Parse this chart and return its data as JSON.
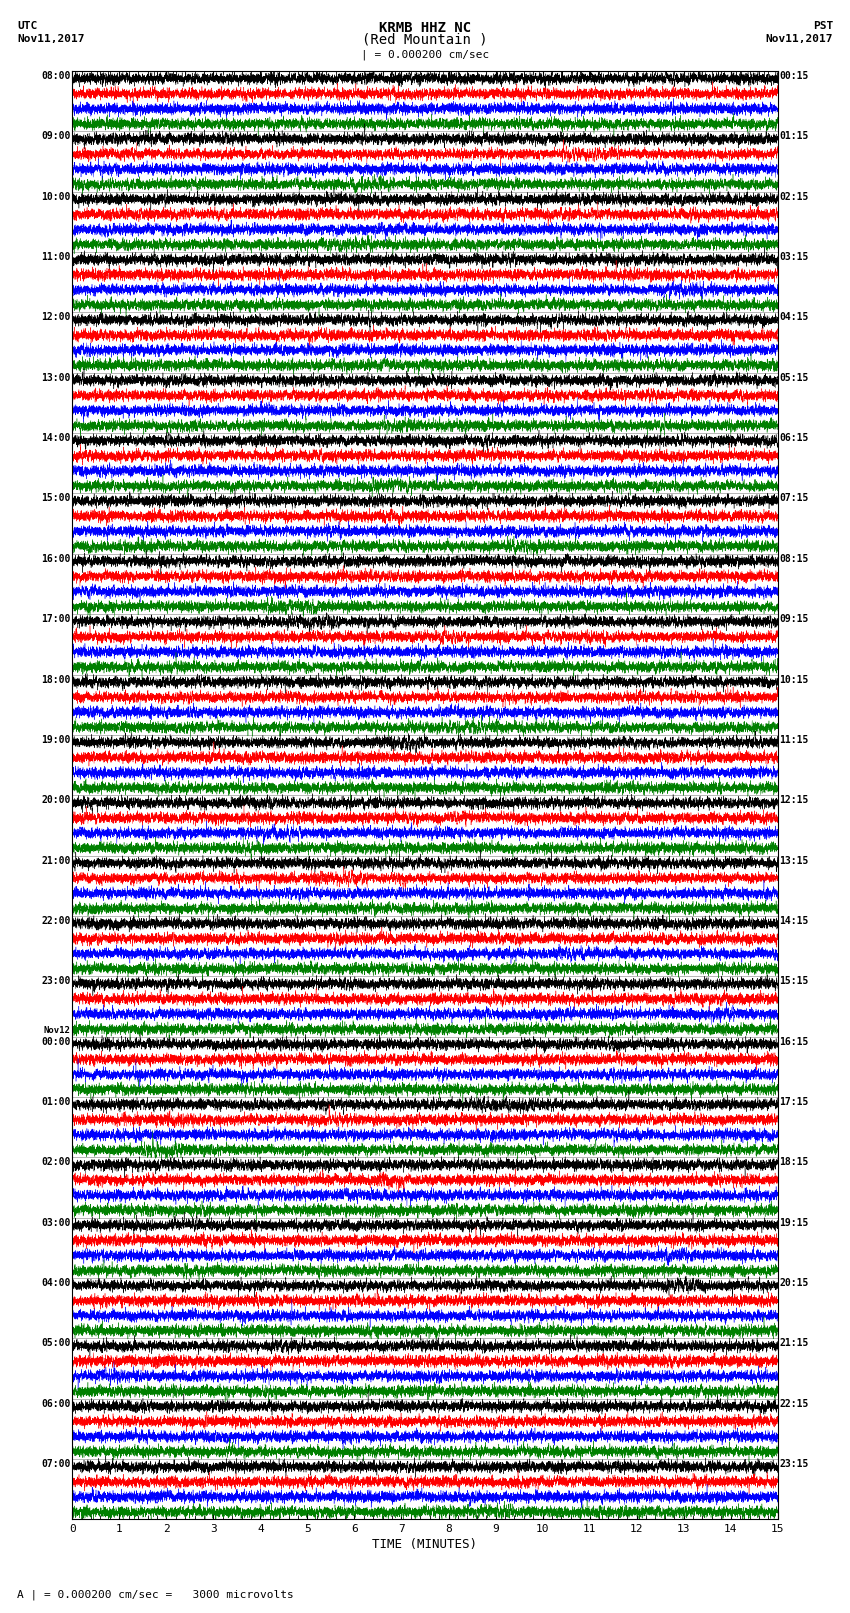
{
  "title_line1": "KRMB HHZ NC",
  "title_line2": "(Red Mountain )",
  "scale_text": "| = 0.000200 cm/sec",
  "footer_text": "A | = 0.000200 cm/sec =   3000 microvolts",
  "xlabel": "TIME (MINUTES)",
  "left_label_line1": "UTC",
  "left_label_line2": "Nov11,2017",
  "right_label_line1": "PST",
  "right_label_line2": "Nov11,2017",
  "left_times": [
    "08:00",
    "09:00",
    "10:00",
    "11:00",
    "12:00",
    "13:00",
    "14:00",
    "15:00",
    "16:00",
    "17:00",
    "18:00",
    "19:00",
    "20:00",
    "21:00",
    "22:00",
    "23:00",
    "Nov12\n00:00",
    "01:00",
    "02:00",
    "03:00",
    "04:00",
    "05:00",
    "06:00",
    "07:00"
  ],
  "right_times": [
    "00:15",
    "01:15",
    "02:15",
    "03:15",
    "04:15",
    "05:15",
    "06:15",
    "07:15",
    "08:15",
    "09:15",
    "10:15",
    "11:15",
    "12:15",
    "13:15",
    "14:15",
    "15:15",
    "16:15",
    "17:15",
    "18:15",
    "19:15",
    "20:15",
    "21:15",
    "22:15",
    "23:15"
  ],
  "n_rows": 24,
  "traces_per_row": 4,
  "colors": [
    "black",
    "red",
    "blue",
    "green"
  ],
  "xlim": [
    0,
    15
  ],
  "xticks": [
    0,
    1,
    2,
    3,
    4,
    5,
    6,
    7,
    8,
    9,
    10,
    11,
    12,
    13,
    14,
    15
  ],
  "figsize": [
    8.5,
    16.13
  ],
  "dpi": 100,
  "bg_color": "white",
  "seed": 42
}
